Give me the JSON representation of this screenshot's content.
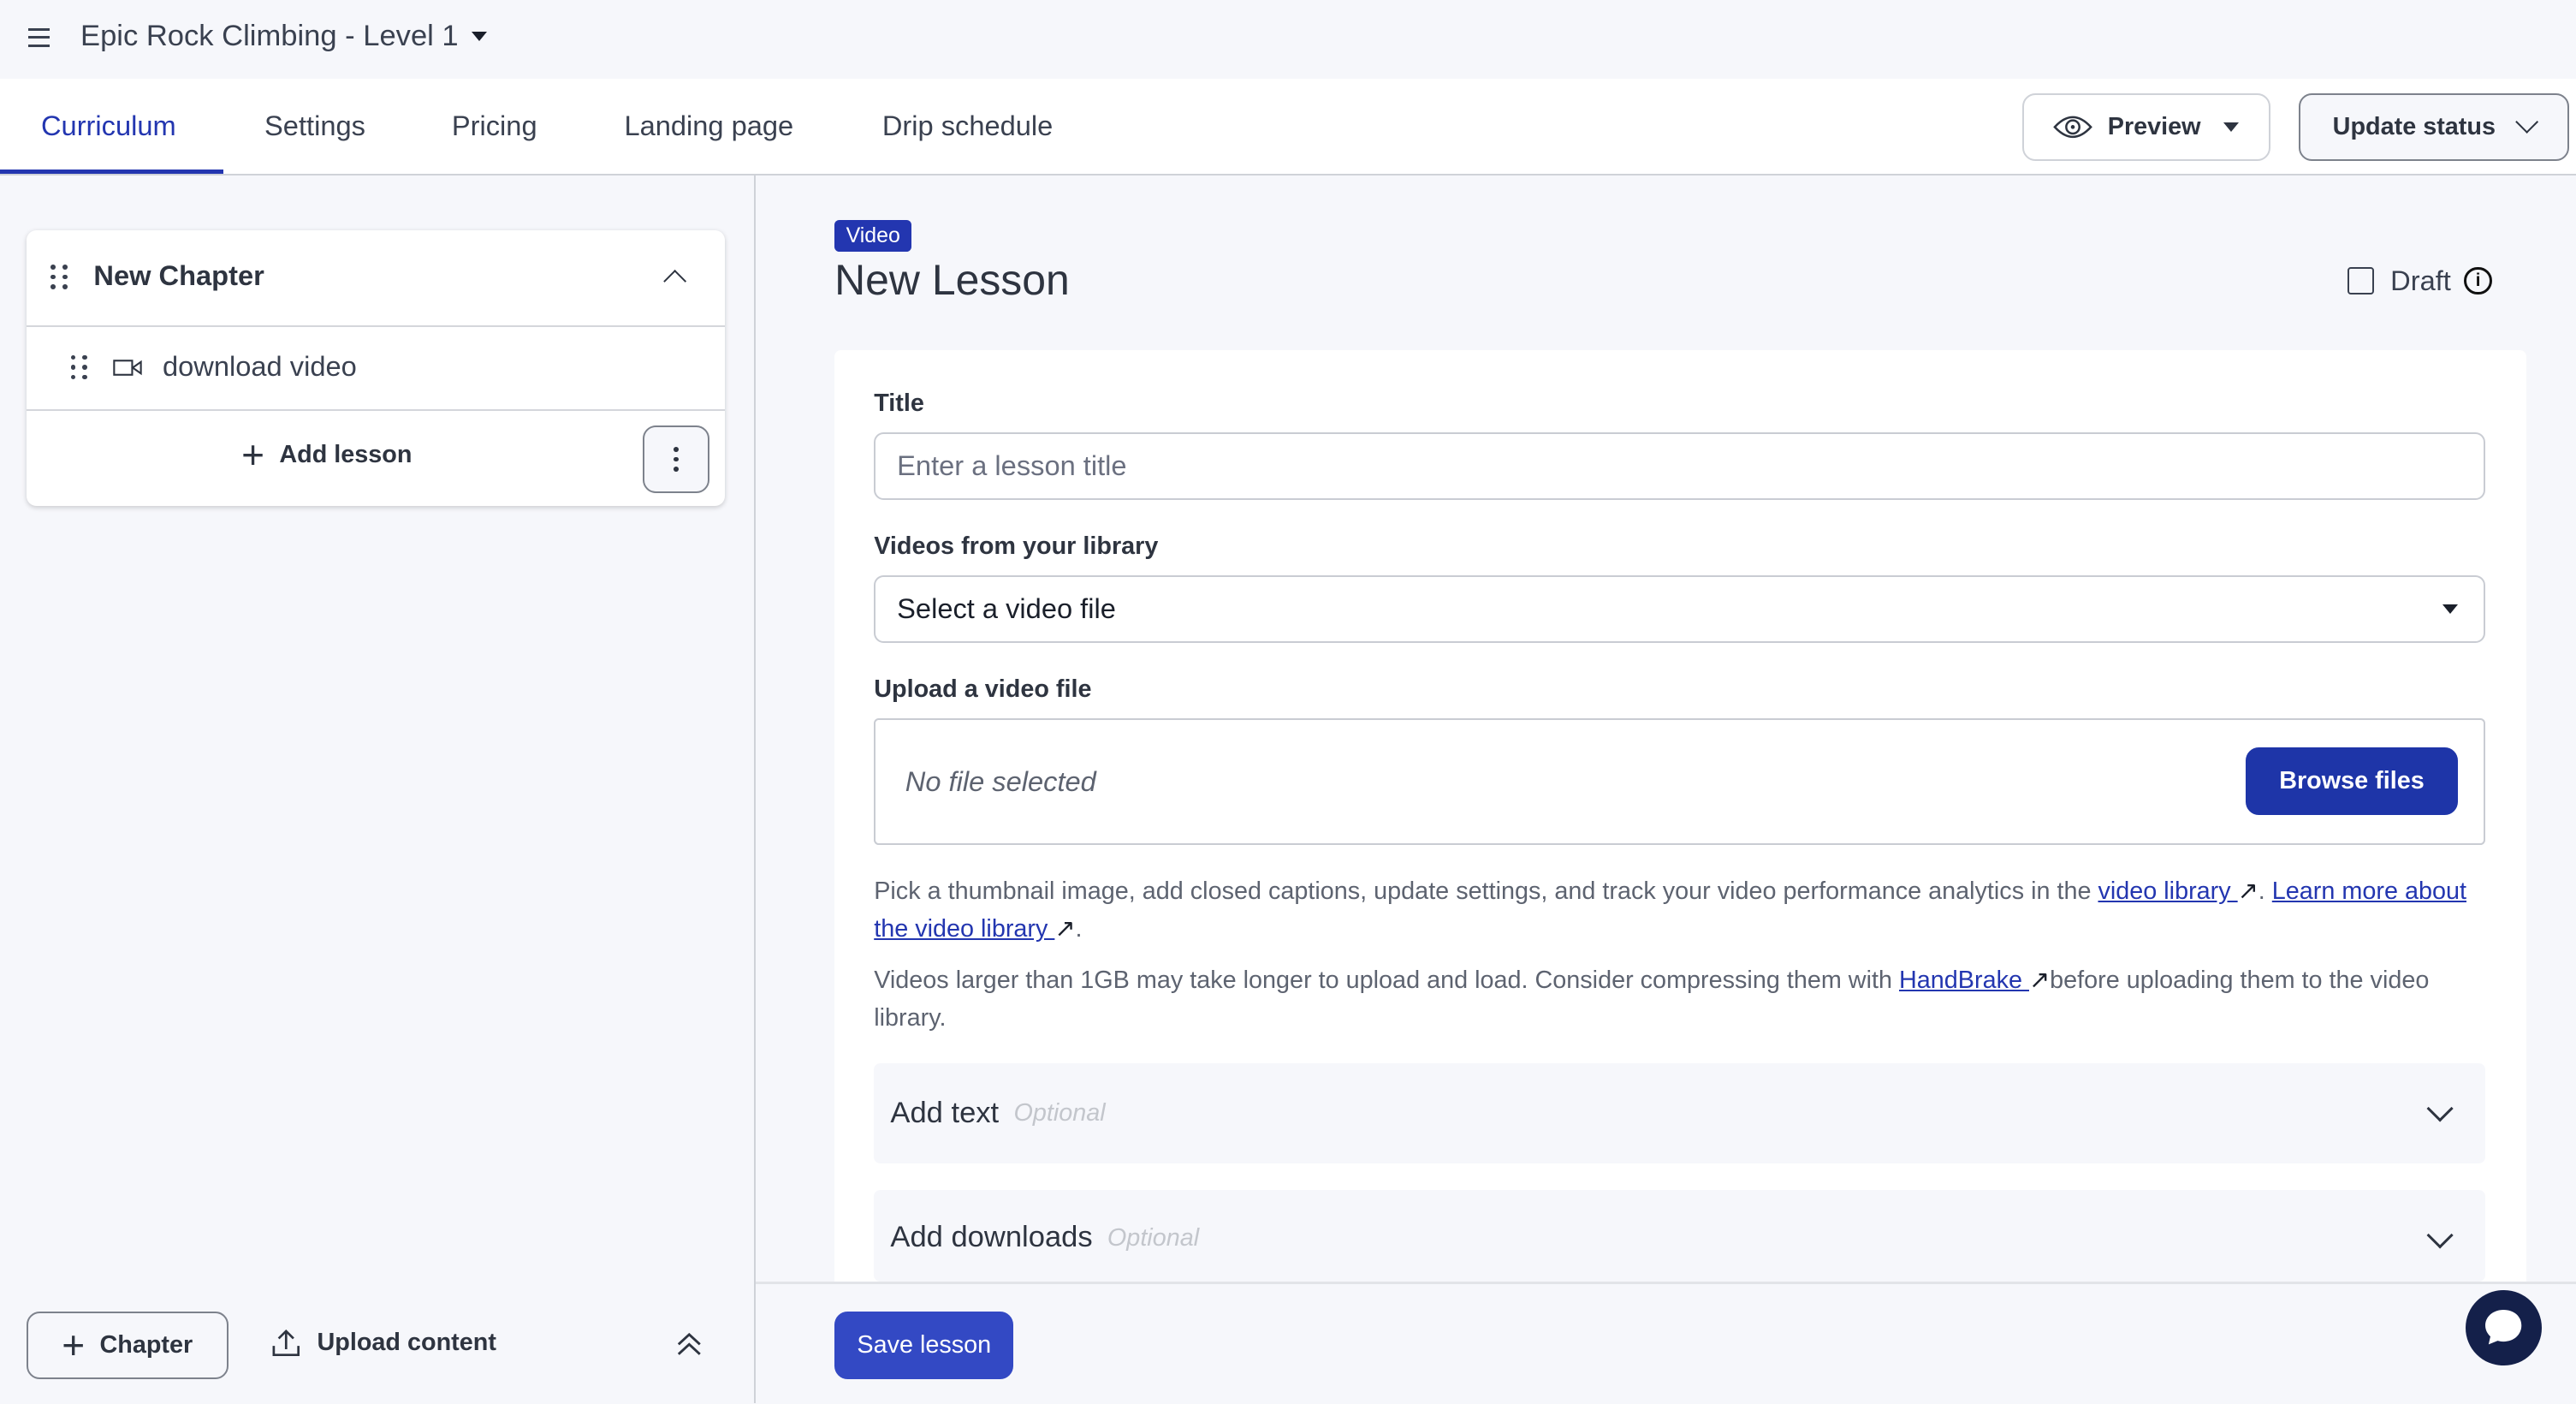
{
  "header": {
    "course_title": "Epic Rock Climbing - Level 1",
    "menu_icon": "hamburger-icon"
  },
  "tabs": [
    {
      "label": "Curriculum",
      "active": true
    },
    {
      "label": "Settings"
    },
    {
      "label": "Pricing"
    },
    {
      "label": "Landing page"
    },
    {
      "label": "Drip schedule"
    }
  ],
  "toolbar": {
    "preview_label": "Preview",
    "update_status_label": "Update status"
  },
  "sidebar": {
    "chapter_title": "New Chapter",
    "lessons": [
      {
        "title": "download video",
        "type_icon": "video-icon"
      }
    ],
    "add_lesson_label": "Add lesson",
    "add_chapter_label": "Chapter",
    "upload_content_label": "Upload content"
  },
  "lesson": {
    "type_badge": "Video",
    "title": "New Lesson",
    "draft_label": "Draft",
    "draft_checked": false,
    "title_label": "Title",
    "title_placeholder": "Enter a lesson title",
    "library_label": "Videos from your library",
    "library_select_value": "Select a video file",
    "upload_label": "Upload a video file",
    "upload_status": "No file selected",
    "browse_label": "Browse files",
    "help1_pre": "Pick a thumbnail image, add closed captions, update settings, and track your video performance analytics in the ",
    "help1_link1": "video library ",
    "help1_mid": ". ",
    "help1_link2": "Learn more about the video library ",
    "help1_post": ".",
    "help2_pre": "Videos larger than 1GB may take longer to upload and load. Consider compressing them with ",
    "help2_link": "HandBrake ",
    "help2_post": "before uploading them to the video library.",
    "add_text_label": "Add text",
    "add_downloads_label": "Add downloads",
    "optional_label": "Optional",
    "save_label": "Save lesson"
  },
  "colors": {
    "primary": "#2336b0",
    "background": "#f6f7fb",
    "chat": "#14204a"
  }
}
